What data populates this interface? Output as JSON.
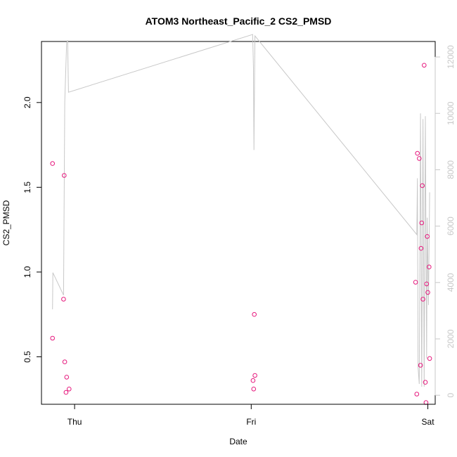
{
  "chart_data": {
    "type": "scatter",
    "title": "ATOM3 Northeast_Pacific_2 CS2_PMSD",
    "xlabel": "Date",
    "ylabel": "CS2_PMSD",
    "x_ticks": [
      {
        "label": "Thu",
        "value": "2019-05-16 00:00"
      },
      {
        "label": "Fri",
        "value": "2019-05-17 00:00"
      },
      {
        "label": "Sat",
        "value": "2019-05-18 00:00"
      }
    ],
    "xlim": [
      "2019-05-15 19:30",
      "2019-05-18 01:00"
    ],
    "ylim": [
      0.22,
      2.36
    ],
    "y_ticks": [
      0.5,
      1.0,
      1.5,
      2.0
    ],
    "y_tick_labels": [
      "0.5",
      "1.0",
      "1.5",
      "2.0"
    ],
    "y2lim": [
      -320,
      12550
    ],
    "y2_ticks": [
      0,
      2000,
      4000,
      6000,
      8000,
      10000,
      12000
    ],
    "y2_tick_labels": [
      "0",
      "2000",
      "4000",
      "6000",
      "8000",
      "10000",
      "12000"
    ],
    "point_color": "#e6197d",
    "line_color": "#c8c8c8",
    "series": [
      {
        "type": "scatter",
        "axis": "left",
        "color": "#e6197d",
        "points": [
          {
            "x": "2019-05-15 21:00",
            "y": 1.64
          },
          {
            "x": "2019-05-15 21:00",
            "y": 0.61
          },
          {
            "x": "2019-05-15 22:30",
            "y": 0.84
          },
          {
            "x": "2019-05-15 22:35",
            "y": 1.57
          },
          {
            "x": "2019-05-15 22:40",
            "y": 0.47
          },
          {
            "x": "2019-05-15 22:50",
            "y": 0.29
          },
          {
            "x": "2019-05-15 22:55",
            "y": 0.38
          },
          {
            "x": "2019-05-15 23:15",
            "y": 0.31
          },
          {
            "x": "2019-05-17 00:15",
            "y": 0.36
          },
          {
            "x": "2019-05-17 00:20",
            "y": 0.31
          },
          {
            "x": "2019-05-17 00:25",
            "y": 0.75
          },
          {
            "x": "2019-05-17 00:30",
            "y": 0.39
          },
          {
            "x": "2019-05-17 22:20",
            "y": 0.94
          },
          {
            "x": "2019-05-17 22:30",
            "y": 0.28
          },
          {
            "x": "2019-05-17 22:35",
            "y": 1.7
          },
          {
            "x": "2019-05-17 22:50",
            "y": 1.67
          },
          {
            "x": "2019-05-17 23:00",
            "y": 0.45
          },
          {
            "x": "2019-05-17 23:05",
            "y": 1.14
          },
          {
            "x": "2019-05-17 23:10",
            "y": 1.29
          },
          {
            "x": "2019-05-17 23:15",
            "y": 1.51
          },
          {
            "x": "2019-05-17 23:20",
            "y": 0.84
          },
          {
            "x": "2019-05-17 23:30",
            "y": 2.22
          },
          {
            "x": "2019-05-17 23:40",
            "y": 0.35
          },
          {
            "x": "2019-05-17 23:45",
            "y": 0.23
          },
          {
            "x": "2019-05-17 23:50",
            "y": 0.93
          },
          {
            "x": "2019-05-17 23:55",
            "y": 1.21
          },
          {
            "x": "2019-05-18 00:00",
            "y": 0.88
          },
          {
            "x": "2019-05-18 00:10",
            "y": 1.03
          },
          {
            "x": "2019-05-18 00:15",
            "y": 0.49
          }
        ]
      },
      {
        "type": "line",
        "axis": "right",
        "color": "#c8c8c8",
        "points": [
          {
            "x": "2019-05-15 21:00",
            "y": 3050
          },
          {
            "x": "2019-05-15 21:03",
            "y": 4350
          },
          {
            "x": "2019-05-15 22:30",
            "y": 3550
          },
          {
            "x": "2019-05-15 22:40",
            "y": 10400
          },
          {
            "x": "2019-05-15 22:55",
            "y": 12500
          },
          {
            "x": "2019-05-15 23:03",
            "y": 12600
          },
          {
            "x": "2019-05-15 23:10",
            "y": 10750
          },
          {
            "x": "2019-05-17 00:12",
            "y": 12800
          },
          {
            "x": "2019-05-17 00:18",
            "y": 11600
          },
          {
            "x": "2019-05-17 00:22",
            "y": 8700
          },
          {
            "x": "2019-05-17 00:30",
            "y": 12750
          },
          {
            "x": "2019-05-17 22:30",
            "y": 5700
          },
          {
            "x": "2019-05-17 22:35",
            "y": 7700
          },
          {
            "x": "2019-05-17 22:40",
            "y": 1000
          },
          {
            "x": "2019-05-17 22:50",
            "y": 400
          },
          {
            "x": "2019-05-17 23:00",
            "y": 10000
          },
          {
            "x": "2019-05-17 23:10",
            "y": 300
          },
          {
            "x": "2019-05-17 23:20",
            "y": 9800
          },
          {
            "x": "2019-05-17 23:30",
            "y": 300
          },
          {
            "x": "2019-05-17 23:40",
            "y": 9900
          },
          {
            "x": "2019-05-17 23:50",
            "y": 1300
          },
          {
            "x": "2019-05-17 23:55",
            "y": 6300
          },
          {
            "x": "2019-05-18 00:05",
            "y": 3200
          },
          {
            "x": "2019-05-18 00:15",
            "y": 7200
          }
        ]
      }
    ]
  }
}
